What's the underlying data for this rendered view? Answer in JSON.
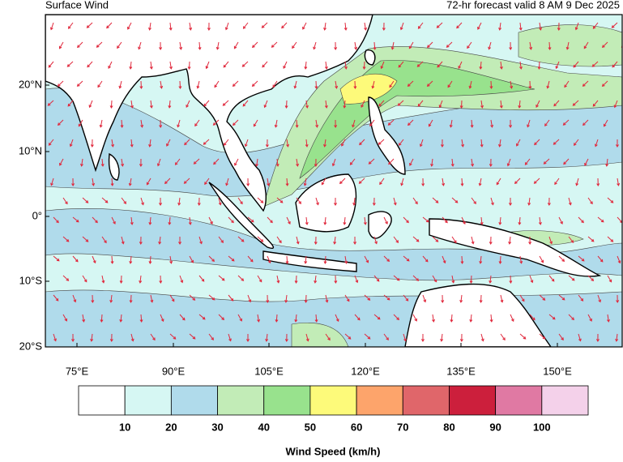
{
  "header": {
    "title": "Surface Wind",
    "subtitle": "72-hr forecast valid 8 AM 9 Dec 2025"
  },
  "map": {
    "lat_labels": [
      "20°N",
      "10°N",
      "0°",
      "10°S",
      "20°S"
    ],
    "lon_labels": [
      "75°E",
      "90°E",
      "105°E",
      "120°E",
      "135°E",
      "150°E"
    ]
  },
  "legend": {
    "title": "Wind Speed (km/h)",
    "colors": [
      "#ffffff",
      "#d6f7f3",
      "#b0dbeb",
      "#c2ecb7",
      "#98e28d",
      "#fdfa7a",
      "#fda46b",
      "#e0666a",
      "#cc1f3c",
      "#e079a3",
      "#f4d1ea"
    ],
    "boundaries": [
      10,
      20,
      30,
      40,
      50,
      60,
      70,
      80,
      90,
      100
    ]
  }
}
